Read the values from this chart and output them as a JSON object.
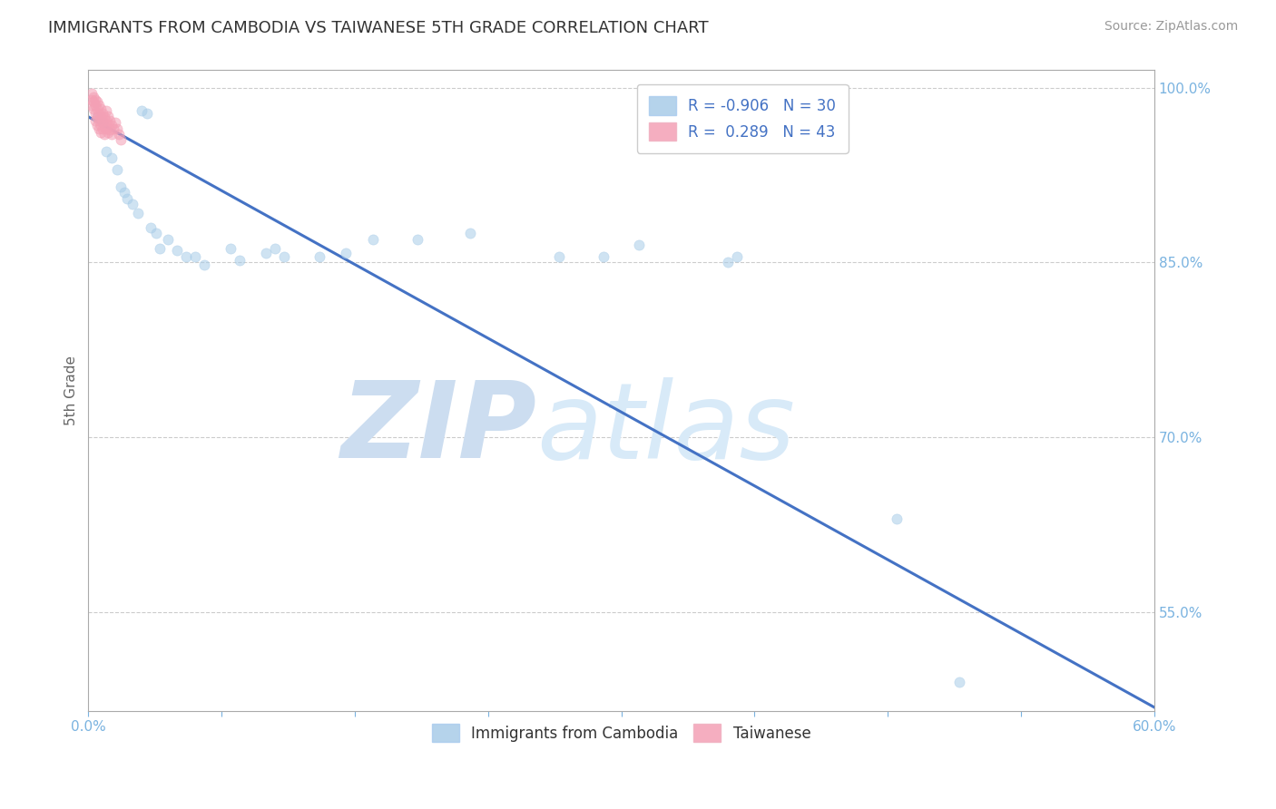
{
  "title": "IMMIGRANTS FROM CAMBODIA VS TAIWANESE 5TH GRADE CORRELATION CHART",
  "source": "Source: ZipAtlas.com",
  "ylabel": "5th Grade",
  "legend_label1": "Immigrants from Cambodia",
  "legend_label2": "Taiwanese",
  "R1": -0.906,
  "N1": 30,
  "R2": 0.289,
  "N2": 43,
  "color1": "#a8cce8",
  "color2": "#f4a0b5",
  "trendline_color": "#4472c4",
  "watermark_zip": "ZIP",
  "watermark_atlas": "atlas",
  "watermark_color": "#ccddf0",
  "xlim": [
    0.0,
    0.6
  ],
  "ylim": [
    0.465,
    1.015
  ],
  "xtick_positions": [
    0.0,
    0.075,
    0.15,
    0.225,
    0.3,
    0.375,
    0.45,
    0.525,
    0.6
  ],
  "xtick_labels_show": {
    "0.0": "0.0%",
    "0.60": "60.0%"
  },
  "yticks_right": [
    0.55,
    0.7,
    0.85,
    1.0
  ],
  "grid_color": "#cccccc",
  "blue_scatter_x": [
    0.005,
    0.008,
    0.03,
    0.033,
    0.01,
    0.013,
    0.016,
    0.018,
    0.02,
    0.022,
    0.025,
    0.028,
    0.035,
    0.038,
    0.04,
    0.045,
    0.05,
    0.055,
    0.06,
    0.065,
    0.08,
    0.085,
    0.1,
    0.105,
    0.11,
    0.13,
    0.145,
    0.185,
    0.31,
    0.49
  ],
  "blue_scatter_y": [
    0.975,
    0.97,
    0.98,
    0.978,
    0.945,
    0.94,
    0.93,
    0.915,
    0.91,
    0.905,
    0.9,
    0.892,
    0.88,
    0.875,
    0.862,
    0.87,
    0.86,
    0.855,
    0.855,
    0.848,
    0.862,
    0.852,
    0.858,
    0.862,
    0.855,
    0.855,
    0.858,
    0.87,
    0.865,
    0.49
  ],
  "pink_scatter_x": [
    0.002,
    0.002,
    0.002,
    0.003,
    0.003,
    0.003,
    0.004,
    0.004,
    0.004,
    0.004,
    0.005,
    0.005,
    0.005,
    0.005,
    0.006,
    0.006,
    0.006,
    0.006,
    0.007,
    0.007,
    0.007,
    0.007,
    0.008,
    0.008,
    0.008,
    0.009,
    0.009,
    0.009,
    0.01,
    0.01,
    0.01,
    0.011,
    0.011,
    0.011,
    0.012,
    0.012,
    0.013,
    0.013,
    0.014,
    0.015,
    0.016,
    0.017,
    0.018
  ],
  "pink_scatter_y": [
    0.995,
    0.99,
    0.985,
    0.992,
    0.988,
    0.982,
    0.99,
    0.985,
    0.978,
    0.972,
    0.988,
    0.982,
    0.975,
    0.968,
    0.985,
    0.978,
    0.972,
    0.965,
    0.982,
    0.975,
    0.968,
    0.962,
    0.978,
    0.972,
    0.965,
    0.975,
    0.968,
    0.96,
    0.98,
    0.972,
    0.965,
    0.976,
    0.969,
    0.962,
    0.972,
    0.964,
    0.968,
    0.96,
    0.965,
    0.97,
    0.965,
    0.96,
    0.955
  ],
  "trendline_x": [
    0.0,
    0.6
  ],
  "trendline_y": [
    0.975,
    0.468
  ],
  "background_color": "#ffffff",
  "title_color": "#333333",
  "axis_color": "#aaaaaa",
  "tick_color": "#7ab3e0",
  "scatter_size": 65,
  "scatter_alpha": 0.55,
  "scatter_linewidth": 0.5,
  "extra_blue_x": [
    0.16,
    0.215,
    0.265,
    0.29,
    0.36,
    0.365,
    0.455
  ],
  "extra_blue_y": [
    0.87,
    0.875,
    0.855,
    0.855,
    0.85,
    0.855,
    0.63
  ]
}
